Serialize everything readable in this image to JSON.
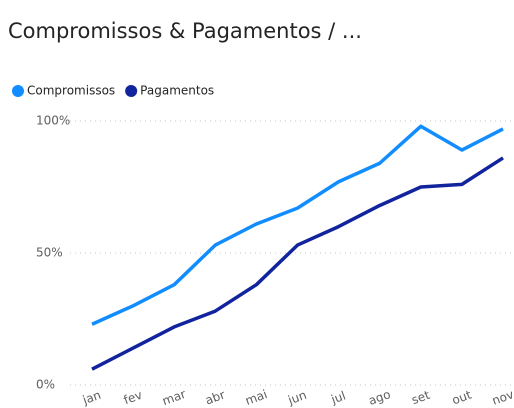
{
  "chart_data": {
    "type": "line",
    "title": "Compromissos & Pagamentos / ...",
    "categories": [
      "jan",
      "fev",
      "mar",
      "abr",
      "mai",
      "jun",
      "jul",
      "ago",
      "set",
      "out",
      "nov"
    ],
    "series": [
      {
        "name": "Compromissos",
        "color": "#118dff",
        "values": [
          23,
          30,
          38,
          53,
          61,
          67,
          77,
          84,
          98,
          89,
          97
        ]
      },
      {
        "name": "Pagamentos",
        "color": "#12239e",
        "values": [
          6,
          14,
          22,
          28,
          38,
          53,
          60,
          68,
          75,
          76,
          86
        ]
      }
    ],
    "ylim": [
      0,
      100
    ],
    "yticks": [
      {
        "value": 0,
        "label": "0%"
      },
      {
        "value": 50,
        "label": "50%"
      },
      {
        "value": 100,
        "label": "100%"
      }
    ],
    "grid": true,
    "legend": "top-left"
  }
}
